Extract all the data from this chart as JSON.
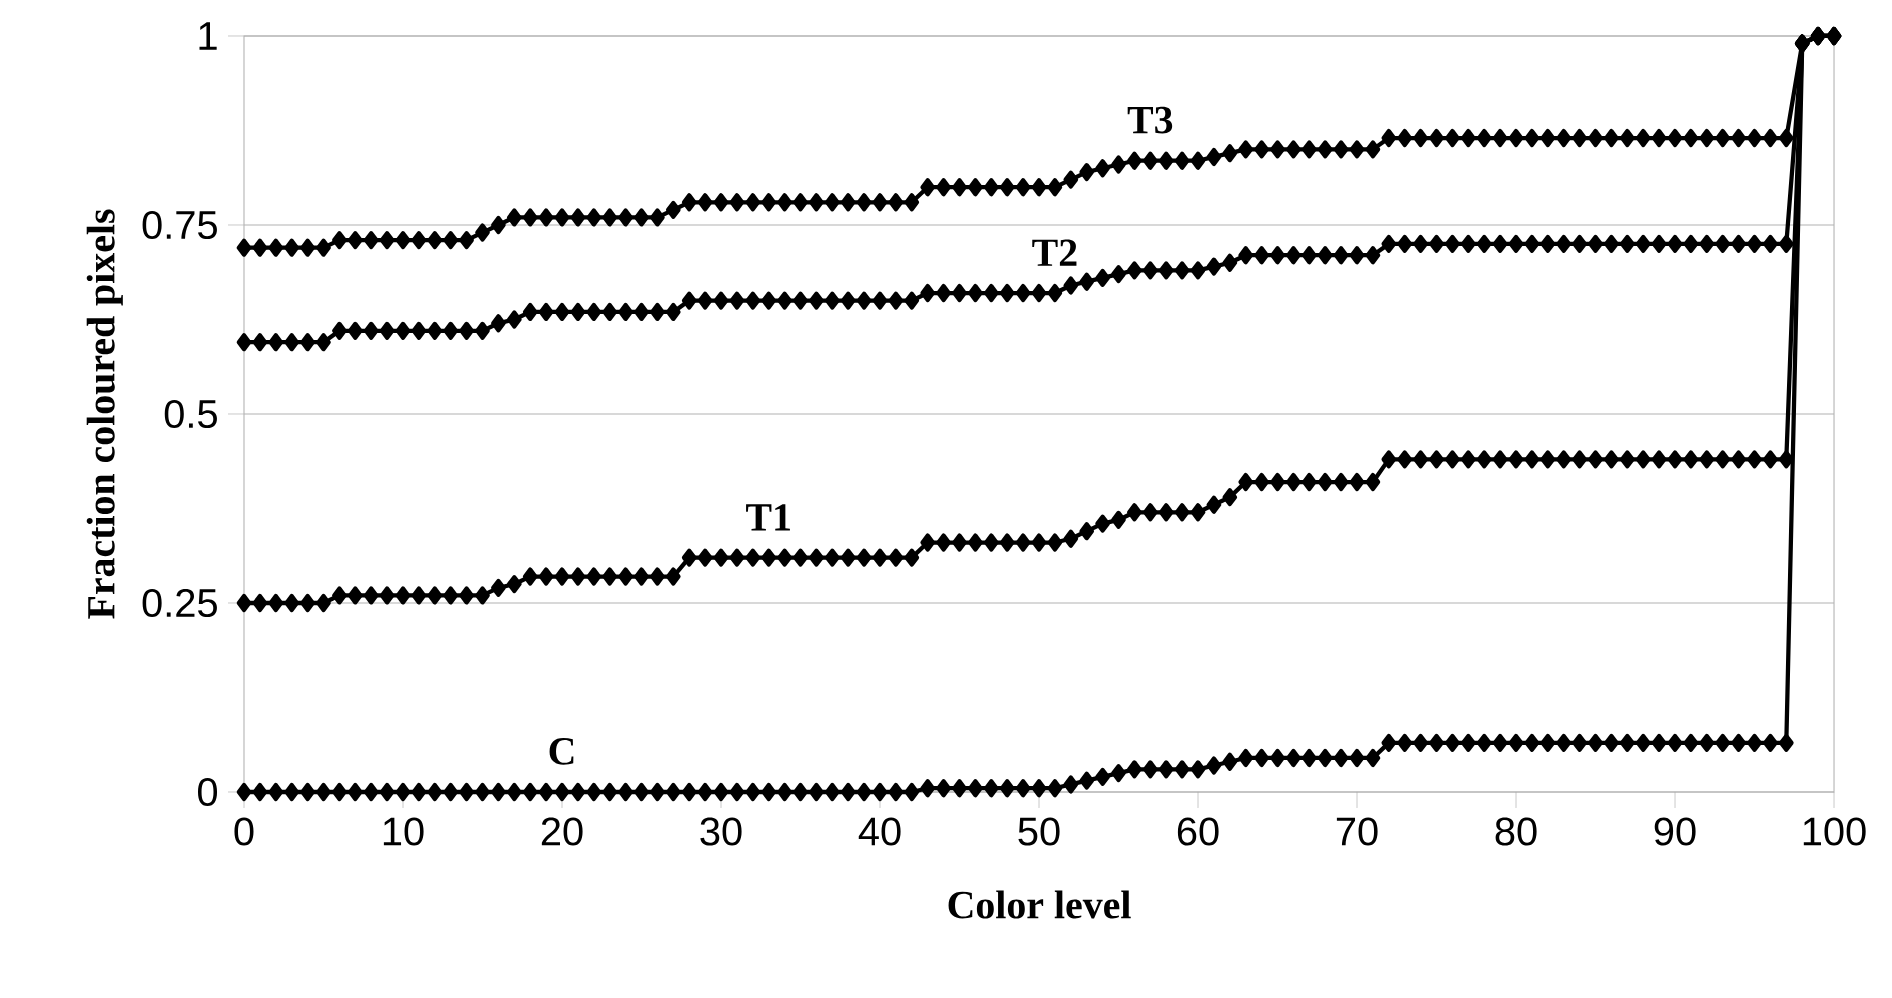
{
  "chart_data": {
    "type": "line",
    "xlabel": "Color level",
    "ylabel": "Fraction coloured pixels",
    "xlim": [
      0,
      100
    ],
    "xticks": [
      0,
      10,
      20,
      30,
      40,
      50,
      60,
      70,
      80,
      90,
      100
    ],
    "ylim": [
      0,
      1
    ],
    "yticks": [
      0,
      0.25,
      0.5,
      0.75,
      1
    ],
    "grid": "y",
    "marker": "diamond",
    "line_style": "solid",
    "legend": false,
    "x": [
      0,
      1,
      2,
      3,
      4,
      5,
      6,
      7,
      8,
      9,
      10,
      11,
      12,
      13,
      14,
      15,
      16,
      17,
      18,
      19,
      20,
      21,
      22,
      23,
      24,
      25,
      26,
      27,
      28,
      29,
      30,
      31,
      32,
      33,
      34,
      35,
      36,
      37,
      38,
      39,
      40,
      41,
      42,
      43,
      44,
      45,
      46,
      47,
      48,
      49,
      50,
      51,
      52,
      53,
      54,
      55,
      56,
      57,
      58,
      59,
      60,
      61,
      62,
      63,
      64,
      65,
      66,
      67,
      68,
      69,
      70,
      71,
      72,
      73,
      74,
      75,
      76,
      77,
      78,
      79,
      80,
      81,
      82,
      83,
      84,
      85,
      86,
      87,
      88,
      89,
      90,
      91,
      92,
      93,
      94,
      95,
      96,
      97,
      98,
      99,
      100
    ],
    "series": [
      {
        "name": "T3",
        "color": "#000000",
        "values": [
          0.72,
          0.72,
          0.72,
          0.72,
          0.72,
          0.72,
          0.73,
          0.73,
          0.73,
          0.73,
          0.73,
          0.73,
          0.73,
          0.73,
          0.73,
          0.74,
          0.75,
          0.76,
          0.76,
          0.76,
          0.76,
          0.76,
          0.76,
          0.76,
          0.76,
          0.76,
          0.76,
          0.77,
          0.78,
          0.78,
          0.78,
          0.78,
          0.78,
          0.78,
          0.78,
          0.78,
          0.78,
          0.78,
          0.78,
          0.78,
          0.78,
          0.78,
          0.78,
          0.8,
          0.8,
          0.8,
          0.8,
          0.8,
          0.8,
          0.8,
          0.8,
          0.8,
          0.81,
          0.82,
          0.825,
          0.83,
          0.835,
          0.835,
          0.835,
          0.835,
          0.835,
          0.84,
          0.845,
          0.85,
          0.85,
          0.85,
          0.85,
          0.85,
          0.85,
          0.85,
          0.85,
          0.85,
          0.865,
          0.865,
          0.865,
          0.865,
          0.865,
          0.865,
          0.865,
          0.865,
          0.865,
          0.865,
          0.865,
          0.865,
          0.865,
          0.865,
          0.865,
          0.865,
          0.865,
          0.865,
          0.865,
          0.865,
          0.865,
          0.865,
          0.865,
          0.865,
          0.865,
          0.865,
          0.99,
          1,
          1
        ]
      },
      {
        "name": "T2",
        "color": "#000000",
        "values": [
          0.595,
          0.595,
          0.595,
          0.595,
          0.595,
          0.595,
          0.61,
          0.61,
          0.61,
          0.61,
          0.61,
          0.61,
          0.61,
          0.61,
          0.61,
          0.61,
          0.62,
          0.625,
          0.635,
          0.635,
          0.635,
          0.635,
          0.635,
          0.635,
          0.635,
          0.635,
          0.635,
          0.635,
          0.65,
          0.65,
          0.65,
          0.65,
          0.65,
          0.65,
          0.65,
          0.65,
          0.65,
          0.65,
          0.65,
          0.65,
          0.65,
          0.65,
          0.65,
          0.66,
          0.66,
          0.66,
          0.66,
          0.66,
          0.66,
          0.66,
          0.66,
          0.66,
          0.67,
          0.675,
          0.68,
          0.685,
          0.69,
          0.69,
          0.69,
          0.69,
          0.69,
          0.695,
          0.7,
          0.71,
          0.71,
          0.71,
          0.71,
          0.71,
          0.71,
          0.71,
          0.71,
          0.71,
          0.725,
          0.725,
          0.725,
          0.725,
          0.725,
          0.725,
          0.725,
          0.725,
          0.725,
          0.725,
          0.725,
          0.725,
          0.725,
          0.725,
          0.725,
          0.725,
          0.725,
          0.725,
          0.725,
          0.725,
          0.725,
          0.725,
          0.725,
          0.725,
          0.725,
          0.725,
          0.99,
          1,
          1
        ]
      },
      {
        "name": "T1",
        "color": "#000000",
        "values": [
          0.25,
          0.25,
          0.25,
          0.25,
          0.25,
          0.25,
          0.26,
          0.26,
          0.26,
          0.26,
          0.26,
          0.26,
          0.26,
          0.26,
          0.26,
          0.26,
          0.27,
          0.275,
          0.285,
          0.285,
          0.285,
          0.285,
          0.285,
          0.285,
          0.285,
          0.285,
          0.285,
          0.285,
          0.31,
          0.31,
          0.31,
          0.31,
          0.31,
          0.31,
          0.31,
          0.31,
          0.31,
          0.31,
          0.31,
          0.31,
          0.31,
          0.31,
          0.31,
          0.33,
          0.33,
          0.33,
          0.33,
          0.33,
          0.33,
          0.33,
          0.33,
          0.33,
          0.335,
          0.345,
          0.355,
          0.36,
          0.37,
          0.37,
          0.37,
          0.37,
          0.37,
          0.38,
          0.39,
          0.41,
          0.41,
          0.41,
          0.41,
          0.41,
          0.41,
          0.41,
          0.41,
          0.41,
          0.44,
          0.44,
          0.44,
          0.44,
          0.44,
          0.44,
          0.44,
          0.44,
          0.44,
          0.44,
          0.44,
          0.44,
          0.44,
          0.44,
          0.44,
          0.44,
          0.44,
          0.44,
          0.44,
          0.44,
          0.44,
          0.44,
          0.44,
          0.44,
          0.44,
          0.44,
          0.99,
          1,
          1
        ]
      },
      {
        "name": "C",
        "color": "#000000",
        "values": [
          0,
          0,
          0,
          0,
          0,
          0,
          0,
          0,
          0,
          0,
          0,
          0,
          0,
          0,
          0,
          0,
          0,
          0,
          0,
          0,
          0,
          0,
          0,
          0,
          0,
          0,
          0,
          0,
          0,
          0,
          0,
          0,
          0,
          0,
          0,
          0,
          0,
          0,
          0,
          0,
          0,
          0,
          0,
          0.005,
          0.005,
          0.005,
          0.005,
          0.005,
          0.005,
          0.005,
          0.005,
          0.005,
          0.01,
          0.015,
          0.02,
          0.025,
          0.03,
          0.03,
          0.03,
          0.03,
          0.03,
          0.035,
          0.04,
          0.045,
          0.045,
          0.045,
          0.045,
          0.045,
          0.045,
          0.045,
          0.045,
          0.045,
          0.065,
          0.065,
          0.065,
          0.065,
          0.065,
          0.065,
          0.065,
          0.065,
          0.065,
          0.065,
          0.065,
          0.065,
          0.065,
          0.065,
          0.065,
          0.065,
          0.065,
          0.065,
          0.065,
          0.065,
          0.065,
          0.065,
          0.065,
          0.065,
          0.065,
          0.065,
          0.99,
          1,
          1
        ]
      }
    ]
  }
}
